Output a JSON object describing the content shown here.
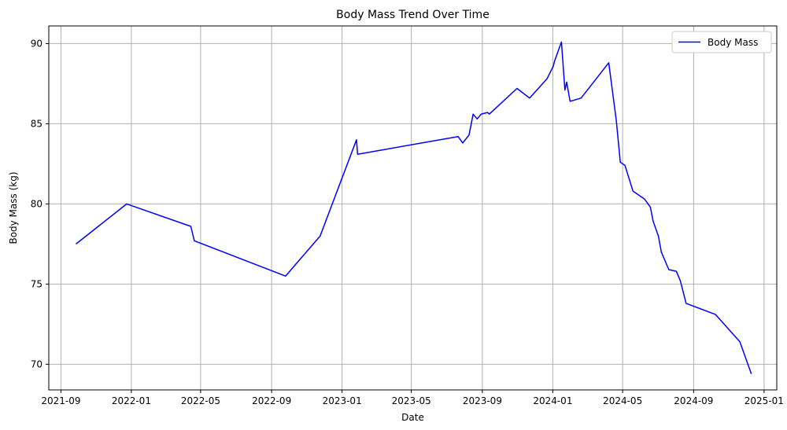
{
  "chart_data": {
    "type": "line",
    "title": "Body Mass Trend Over Time",
    "xlabel": "Date",
    "ylabel": "Body Mass (kg)",
    "grid": true,
    "legend_position": "top-right",
    "x_ticks": [
      "2021-09",
      "2022-01",
      "2022-05",
      "2022-09",
      "2023-01",
      "2023-05",
      "2023-09",
      "2024-01",
      "2024-05",
      "2024-09",
      "2025-01"
    ],
    "y_ticks": [
      70,
      75,
      80,
      85,
      90
    ],
    "xlim": [
      "2021-08-11",
      "2025-01-23"
    ],
    "ylim": [
      68.4,
      91.1
    ],
    "series": [
      {
        "name": "Body Mass",
        "color": "#0000ff",
        "x": [
          "2021-09-27",
          "2021-12-24",
          "2022-04-14",
          "2022-04-20",
          "2022-09-25",
          "2022-11-24",
          "2023-01-26",
          "2023-01-28",
          "2023-07-21",
          "2023-07-29",
          "2023-08-09",
          "2023-08-16",
          "2023-08-23",
          "2023-08-30",
          "2023-09-10",
          "2023-09-13",
          "2023-10-31",
          "2023-11-22",
          "2023-12-22",
          "2024-01-02",
          "2024-01-04",
          "2024-01-16",
          "2024-01-22",
          "2024-01-25",
          "2024-01-31",
          "2024-02-19",
          "2024-04-07",
          "2024-04-20",
          "2024-04-27",
          "2024-05-05",
          "2024-05-19",
          "2024-06-08",
          "2024-06-18",
          "2024-06-23",
          "2024-07-02",
          "2024-07-07",
          "2024-07-20",
          "2024-08-02",
          "2024-08-09",
          "2024-08-19",
          "2024-10-09",
          "2024-11-20",
          "2024-12-04",
          "2024-12-10"
        ],
        "y": [
          77.5,
          80.0,
          78.6,
          77.7,
          75.5,
          78.0,
          84.0,
          83.1,
          84.2,
          83.8,
          84.3,
          85.6,
          85.3,
          85.6,
          85.7,
          85.6,
          87.2,
          86.6,
          87.8,
          88.6,
          88.9,
          90.1,
          87.1,
          87.6,
          86.4,
          86.6,
          88.8,
          85.2,
          82.6,
          82.4,
          80.8,
          80.3,
          79.8,
          78.9,
          78.0,
          77.0,
          75.9,
          75.8,
          75.2,
          73.8,
          73.1,
          71.4,
          70.0,
          69.4
        ]
      }
    ]
  },
  "colors": {
    "line": "#0000ff",
    "grid": "#b0b0b0",
    "axes": "#000000"
  }
}
